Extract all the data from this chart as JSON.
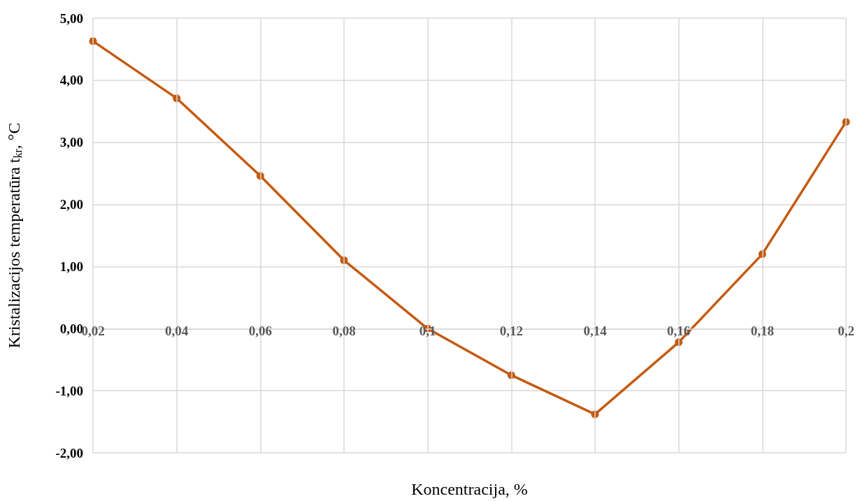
{
  "chart_data": {
    "type": "line",
    "xlabel": "Koncentracija, %",
    "ylabel": "Kristalizacijos temperatūra t$_{kr}$, °C",
    "x": [
      0.02,
      0.04,
      0.06,
      0.08,
      0.1,
      0.12,
      0.14,
      0.16,
      0.18,
      0.2
    ],
    "series": [
      {
        "color": "#c55a11",
        "values": [
          4.63,
          3.71,
          2.46,
          1.1,
          0,
          -0.75,
          -1.38,
          -0.22,
          1.2,
          3.33
        ]
      }
    ],
    "xlim": [
      0.02,
      0.2
    ],
    "xticks": [
      {
        "value": 0.02,
        "label": "0,02"
      },
      {
        "value": 0.04,
        "label": "0,04"
      },
      {
        "value": 0.06,
        "label": "0,06"
      },
      {
        "value": 0.08,
        "label": "0,08"
      },
      {
        "value": 0.1,
        "label": "0,1"
      },
      {
        "value": 0.12,
        "label": "0,12"
      },
      {
        "value": 0.14,
        "label": "0,14"
      },
      {
        "value": 0.16,
        "label": "0,16"
      },
      {
        "value": 0.18,
        "label": "0,18"
      },
      {
        "value": 0.2,
        "label": "0,2"
      }
    ],
    "ylim": [
      -2,
      5
    ],
    "yticks": [
      {
        "value": -2,
        "label": "-2,00"
      },
      {
        "value": -1,
        "label": "-1,00"
      },
      {
        "value": 0,
        "label": "0,00"
      },
      {
        "value": 1,
        "label": "1,00"
      },
      {
        "value": 2,
        "label": "2,00"
      },
      {
        "value": 3,
        "label": "3,00"
      },
      {
        "value": 4,
        "label": "4,00"
      },
      {
        "value": 5,
        "label": "5,00"
      }
    ],
    "grid": true,
    "marker": "circle",
    "line_style": "solid"
  }
}
